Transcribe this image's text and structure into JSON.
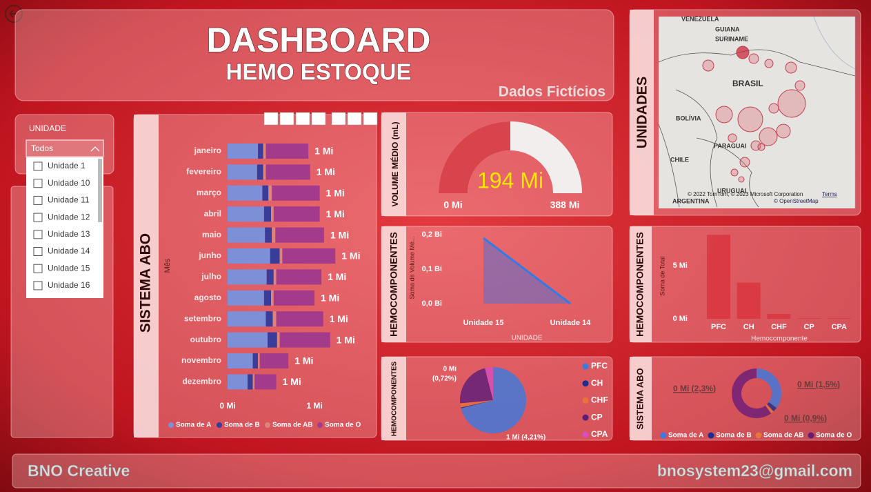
{
  "header": {
    "title": "DASHBOARD",
    "subtitle": "HEMO ESTOQUE",
    "note": "Dados Fictícios"
  },
  "slicer": {
    "label": "UNIDADE",
    "selected": "Todos",
    "items": [
      "Unidade 1",
      "Unidade 10",
      "Unidade 11",
      "Unidade 12",
      "Unidade 13",
      "Unidade 14",
      "Unidade 15",
      "Unidade 16"
    ]
  },
  "map": {
    "title": "UNIDADES",
    "labels": [
      "VENEZUELA",
      "GUIANA",
      "SURINAME",
      "BRASIL",
      "BOLÍVIA",
      "PARAGUAI",
      "CHILE",
      "URUGUAI",
      "ARGENTINA"
    ],
    "attribution": "© 2022 TomTom, © 2023 Microsoft Corporation",
    "terms": "Terms",
    "osm": "© OpenStreetMap"
  },
  "chart_data": [
    {
      "type": "hbar_stacked",
      "title": "SISTEMA ABO",
      "y_label": "Mês",
      "categories": [
        "janeiro",
        "fevereiro",
        "março",
        "abril",
        "maio",
        "junho",
        "julho",
        "agosto",
        "setembro",
        "outubro",
        "novembro",
        "dezembro"
      ],
      "series": [
        {
          "name": "Soma de A",
          "color": "#7d8fd6",
          "values": [
            350000,
            340000,
            400000,
            420000,
            430000,
            490000,
            450000,
            420000,
            440000,
            460000,
            290000,
            230000
          ]
        },
        {
          "name": "Soma de B",
          "color": "#3a3c9a",
          "values": [
            60000,
            70000,
            70000,
            80000,
            80000,
            110000,
            80000,
            80000,
            80000,
            110000,
            60000,
            60000
          ]
        },
        {
          "name": "Soma de AB",
          "color": "#e0847a",
          "values": [
            30000,
            30000,
            40000,
            30000,
            40000,
            30000,
            30000,
            30000,
            40000,
            30000,
            20000,
            20000
          ]
        },
        {
          "name": "Soma de O",
          "color": "#a33a8a",
          "values": [
            490000,
            510000,
            550000,
            530000,
            560000,
            610000,
            520000,
            470000,
            540000,
            580000,
            330000,
            250000
          ]
        }
      ],
      "total_labels": [
        "1 Mi",
        "1 Mi",
        "1 Mi",
        "1 Mi",
        "1 Mi",
        "1 Mi",
        "1 Mi",
        "1 Mi",
        "1 Mi",
        "1 Mi",
        "1 Mi",
        "1 Mi"
      ],
      "xlim": [
        0,
        1500000
      ],
      "xticks": [
        {
          "value": 0,
          "label": "0 Mi"
        },
        {
          "value": 1000000,
          "label": "1 Mi"
        }
      ],
      "legend": "bottom"
    },
    {
      "type": "gauge",
      "title": "VOLUME MÉDIO (mL)",
      "value": 194000000,
      "value_label": "194 Mi",
      "range": [
        {
          "value": 0,
          "label": "0 Mi"
        },
        {
          "value": 388000000,
          "label": "388 Mi"
        }
      ],
      "color": "#d9434c",
      "track_color": "#f3eeee"
    },
    {
      "type": "area",
      "title": "HEMOCOMPONENTES",
      "x_label": "UNIDADE",
      "y_label": "Soma de Volume Mé...",
      "categories": [
        "Unidade 15",
        "Unidade 14"
      ],
      "values": [
        190000000,
        0
      ],
      "color": "#2f7be8",
      "ylim": [
        0,
        200000000
      ],
      "yticks": [
        {
          "value": 0,
          "label": "0,0 Bi"
        },
        {
          "value": 100000000,
          "label": "0,1 Bi"
        },
        {
          "value": 200000000,
          "label": "0,2 Bi"
        }
      ]
    },
    {
      "type": "column",
      "title": "HEMOCOMPONENTES",
      "x_label": "Hemocomponente",
      "y_label": "Soma de Total",
      "categories": [
        "PFC",
        "CH",
        "CHF",
        "CP",
        "CPA"
      ],
      "values": [
        7900000,
        3400000,
        450000,
        50000,
        50000
      ],
      "color": "#d9363e",
      "ylim": [
        0,
        8200000
      ],
      "yticks": [
        {
          "value": 0,
          "label": "0 Mi"
        },
        {
          "value": 5000000,
          "label": "5 Mi"
        }
      ]
    },
    {
      "type": "pie",
      "title": "HEMOCOMPONENTES",
      "categories": [
        "PFC",
        "CH",
        "CHF",
        "CP",
        "CPA"
      ],
      "values": [
        71,
        0.5,
        2,
        22.5,
        4
      ],
      "colors": [
        "#3a7be0",
        "#1c2d8f",
        "#e8743b",
        "#5b1c7a",
        "#d64ebf"
      ],
      "annotations": [
        "0 Mi",
        "(0,72%)",
        "1 Mi (4,21%)"
      ]
    },
    {
      "type": "donut",
      "title": "SISTEMA ABO",
      "categories": [
        "Soma de A",
        "Soma de B",
        "Soma de AB",
        "Soma de O"
      ],
      "values": [
        35,
        3,
        2,
        60
      ],
      "colors": [
        "#3a7be0",
        "#1c2d8f",
        "#e8743b",
        "#6a1b7a"
      ],
      "annotations": [
        "0 Mi (2,3%)",
        "0 Mi (1,5%)",
        "0 Mi (0,9%)"
      ]
    }
  ],
  "footer": {
    "left": "BNO Creative",
    "right": "bnosystem23@gmail.com"
  }
}
